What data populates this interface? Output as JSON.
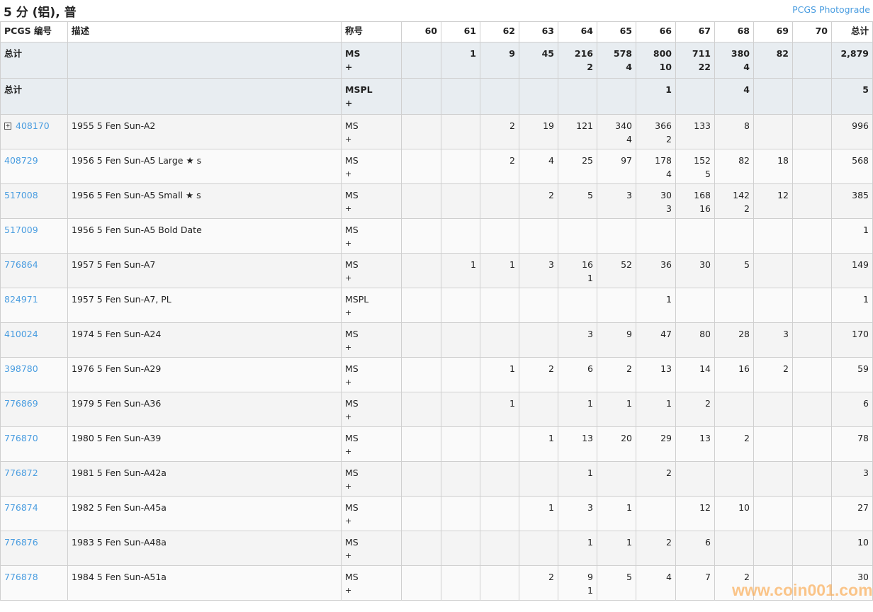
{
  "title": "5 分 (铝), 普",
  "photograde_link": "PCGS Photograde",
  "headers": [
    "PCGS 编号",
    "描述",
    "称号",
    "60",
    "61",
    "62",
    "63",
    "64",
    "65",
    "66",
    "67",
    "68",
    "69",
    "70",
    "总计"
  ],
  "totals": [
    {
      "label": "总计",
      "designation": "MS",
      "plus": "+",
      "grades": [
        "",
        "1",
        "9",
        "45",
        "216/2",
        "578/4",
        "800/10",
        "711/22",
        "380/4",
        "82",
        ""
      ],
      "total": "2,879"
    },
    {
      "label": "总计",
      "designation": "MSPL",
      "plus": "+",
      "grades": [
        "",
        "",
        "",
        "",
        "",
        "",
        "1",
        "",
        "4",
        "",
        ""
      ],
      "total": "5"
    }
  ],
  "rows": [
    {
      "id": "408170",
      "expandable": true,
      "desc": "1955 5 Fen Sun-A2",
      "designation": "MS",
      "plus": "+",
      "grades": [
        "",
        "",
        "2",
        "19",
        "121",
        "340/4",
        "366/2",
        "133",
        "8",
        "",
        ""
      ],
      "total": "996"
    },
    {
      "id": "408729",
      "desc": "1956 5 Fen Sun-A5 Large ★ s",
      "designation": "MS",
      "plus": "+",
      "grades": [
        "",
        "",
        "2",
        "4",
        "25",
        "97",
        "178/4",
        "152/5",
        "82",
        "18",
        ""
      ],
      "total": "568"
    },
    {
      "id": "517008",
      "desc": "1956 5 Fen Sun-A5 Small ★ s",
      "designation": "MS",
      "plus": "+",
      "grades": [
        "",
        "",
        "",
        "2",
        "5",
        "3",
        "30/3",
        "168/16",
        "142/2",
        "12",
        ""
      ],
      "total": "385"
    },
    {
      "id": "517009",
      "desc": "1956 5 Fen Sun-A5 Bold Date",
      "designation": "MS",
      "plus": "+",
      "grades": [
        "",
        "",
        "",
        "",
        "",
        "",
        "",
        "",
        "",
        "",
        ""
      ],
      "total": "1"
    },
    {
      "id": "776864",
      "desc": "1957 5 Fen Sun-A7",
      "designation": "MS",
      "plus": "+",
      "grades": [
        "",
        "1",
        "1",
        "3",
        "16/1",
        "52",
        "36",
        "30",
        "5",
        "",
        ""
      ],
      "total": "149"
    },
    {
      "id": "824971",
      "desc": "1957 5 Fen Sun-A7, PL",
      "designation": "MSPL",
      "plus": "+",
      "grades": [
        "",
        "",
        "",
        "",
        "",
        "",
        "1",
        "",
        "",
        "",
        ""
      ],
      "total": "1"
    },
    {
      "id": "410024",
      "desc": "1974 5 Fen Sun-A24",
      "designation": "MS",
      "plus": "+",
      "grades": [
        "",
        "",
        "",
        "",
        "3",
        "9",
        "47",
        "80",
        "28",
        "3",
        ""
      ],
      "total": "170"
    },
    {
      "id": "398780",
      "desc": "1976 5 Fen Sun-A29",
      "designation": "MS",
      "plus": "+",
      "grades": [
        "",
        "",
        "1",
        "2",
        "6",
        "2",
        "13",
        "14",
        "16",
        "2",
        ""
      ],
      "total": "59"
    },
    {
      "id": "776869",
      "desc": "1979 5 Fen Sun-A36",
      "designation": "MS",
      "plus": "+",
      "grades": [
        "",
        "",
        "1",
        "",
        "1",
        "1",
        "1",
        "2",
        "",
        "",
        ""
      ],
      "total": "6"
    },
    {
      "id": "776870",
      "desc": "1980 5 Fen Sun-A39",
      "designation": "MS",
      "plus": "+",
      "grades": [
        "",
        "",
        "",
        "1",
        "13",
        "20",
        "29",
        "13",
        "2",
        "",
        ""
      ],
      "total": "78"
    },
    {
      "id": "776872",
      "desc": "1981 5 Fen Sun-A42a",
      "designation": "MS",
      "plus": "+",
      "grades": [
        "",
        "",
        "",
        "",
        "1",
        "",
        "2",
        "",
        "",
        "",
        ""
      ],
      "total": "3"
    },
    {
      "id": "776874",
      "desc": "1982 5 Fen Sun-A45a",
      "designation": "MS",
      "plus": "+",
      "grades": [
        "",
        "",
        "",
        "1",
        "3",
        "1",
        "",
        "12",
        "10",
        "",
        ""
      ],
      "total": "27"
    },
    {
      "id": "776876",
      "desc": "1983 5 Fen Sun-A48a",
      "designation": "MS",
      "plus": "+",
      "grades": [
        "",
        "",
        "",
        "",
        "1",
        "1",
        "2",
        "6",
        "",
        "",
        ""
      ],
      "total": "10"
    },
    {
      "id": "776878",
      "desc": "1984 5 Fen Sun-A51a",
      "designation": "MS",
      "plus": "+",
      "grades": [
        "",
        "",
        "",
        "2",
        "9/1",
        "5",
        "4",
        "7",
        "2",
        "",
        ""
      ],
      "total": "30"
    }
  ],
  "watermark": "www.coin001.com",
  "colors": {
    "link": "#4a9de0",
    "total_row_bg": "#e8edf1",
    "watermark": "#faa03c"
  }
}
